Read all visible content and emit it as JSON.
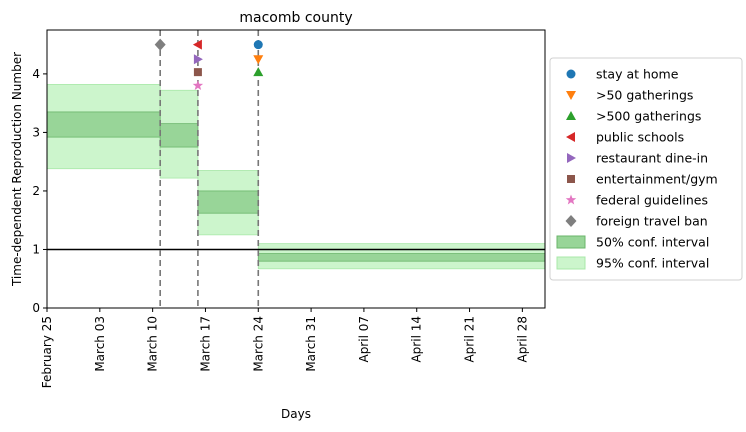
{
  "chart_data": {
    "type": "step-interval",
    "title": "macomb county",
    "xlabel": "Days",
    "ylabel": "Time-dependent Reproduction Number",
    "x_start_date": "2020-02-25",
    "xlim_days": [
      0,
      66
    ],
    "ylim": [
      0,
      4.75
    ],
    "yticks": [
      0,
      1,
      2,
      3,
      4
    ],
    "xticks": [
      {
        "label": "February 25",
        "day": 0
      },
      {
        "label": "March 03",
        "day": 7
      },
      {
        "label": "March 10",
        "day": 14
      },
      {
        "label": "March 17",
        "day": 21
      },
      {
        "label": "March 24",
        "day": 28
      },
      {
        "label": "March 31",
        "day": 35
      },
      {
        "label": "April 07",
        "day": 42
      },
      {
        "label": "April 14",
        "day": 49
      },
      {
        "label": "April 21",
        "day": 56
      },
      {
        "label": "April 28",
        "day": 63
      }
    ],
    "reference_line": 1,
    "segments": [
      {
        "start": 0,
        "end": 15,
        "ci50": [
          2.92,
          3.35
        ],
        "ci95": [
          2.38,
          3.82
        ]
      },
      {
        "start": 15,
        "end": 20,
        "ci50": [
          2.75,
          3.15
        ],
        "ci95": [
          2.22,
          3.72
        ]
      },
      {
        "start": 20,
        "end": 28,
        "ci50": [
          1.62,
          2.0
        ],
        "ci95": [
          1.25,
          2.35
        ]
      },
      {
        "start": 28,
        "end": 66,
        "ci50": [
          0.8,
          0.93
        ],
        "ci95": [
          0.67,
          1.1
        ]
      }
    ],
    "changepoints": [
      15,
      20,
      28
    ],
    "interventions": [
      {
        "name": "stay at home",
        "day": 28,
        "y": 4.5,
        "marker": "circle",
        "color": "#1f77b4"
      },
      {
        "name": ">50 gatherings",
        "day": 28,
        "y": 4.25,
        "marker": "triangle-down",
        "color": "#ff7f0e"
      },
      {
        "name": ">500 gatherings",
        "day": 28,
        "y": 4.03,
        "marker": "triangle-up",
        "color": "#2ca02c"
      },
      {
        "name": "public schools",
        "day": 20,
        "y": 4.5,
        "marker": "triangle-left",
        "color": "#d62728"
      },
      {
        "name": "restaurant dine-in",
        "day": 20,
        "y": 4.25,
        "marker": "triangle-right",
        "color": "#9467bd"
      },
      {
        "name": "entertainment/gym",
        "day": 20,
        "y": 4.03,
        "marker": "square",
        "color": "#8c564b"
      },
      {
        "name": "federal guidelines",
        "day": 20,
        "y": 3.8,
        "marker": "star",
        "color": "#e377c2"
      },
      {
        "name": "foreign travel ban",
        "day": 15,
        "y": 4.5,
        "marker": "diamond",
        "color": "#7f7f7f"
      }
    ],
    "ci_legend": [
      {
        "name": "50% conf. interval",
        "fill": "#98d598",
        "stroke": "#6ab56a"
      },
      {
        "name": "95% conf. interval",
        "fill": "#ccf5cc",
        "stroke": "#a8e8a8"
      }
    ],
    "legend_position": "right"
  }
}
